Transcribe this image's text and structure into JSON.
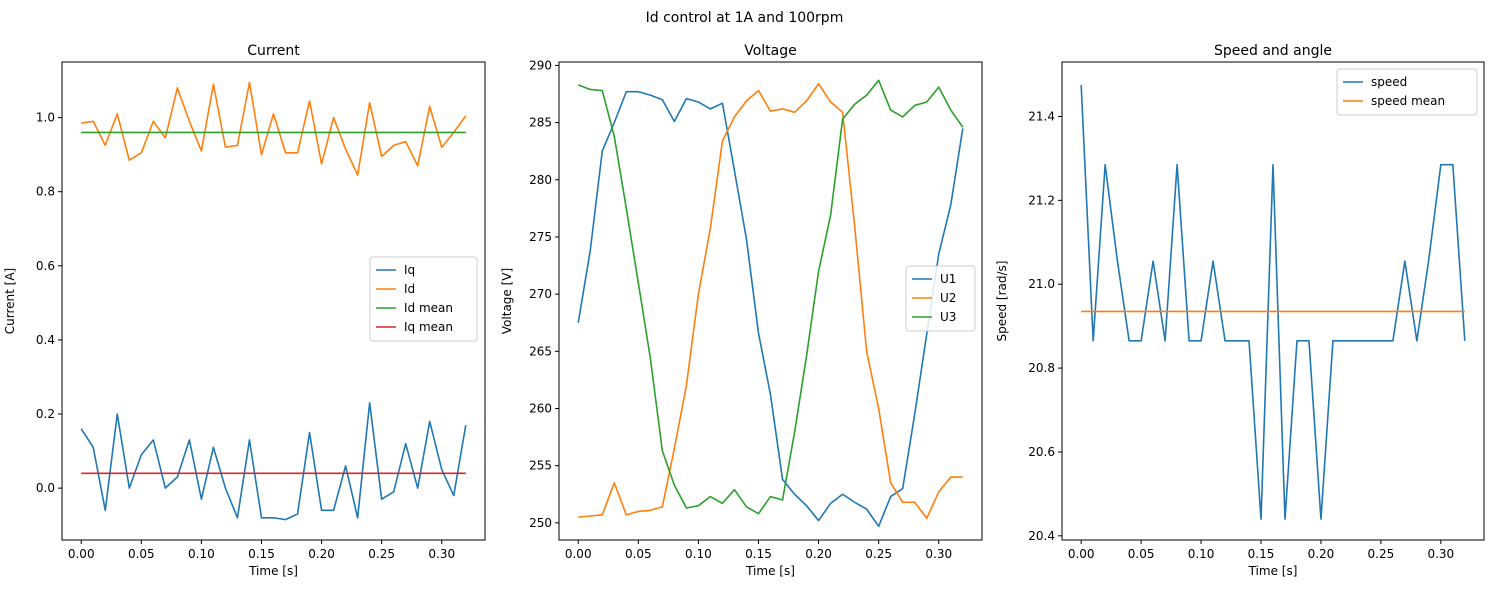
{
  "figure": {
    "title": "Id control at 1A and 100rpm"
  },
  "chart_data": [
    {
      "type": "line",
      "title": "Current",
      "xlabel": "Time [s]",
      "ylabel": "Current [A]",
      "xlim": [
        -0.016,
        0.336
      ],
      "ylim": [
        -0.14,
        1.15
      ],
      "xticks": [
        0.0,
        0.05,
        0.1,
        0.15,
        0.2,
        0.25,
        0.3
      ],
      "xtick_labels": [
        "0.00",
        "0.05",
        "0.10",
        "0.15",
        "0.20",
        "0.25",
        "0.30"
      ],
      "yticks": [
        0.0,
        0.2,
        0.4,
        0.6,
        0.8,
        1.0
      ],
      "ytick_labels": [
        "0.0",
        "0.2",
        "0.4",
        "0.6",
        "0.8",
        "1.0"
      ],
      "grid": false,
      "legend_position": "center-right",
      "x": [
        0.0,
        0.01,
        0.02,
        0.03,
        0.04,
        0.05,
        0.06,
        0.07,
        0.08,
        0.09,
        0.1,
        0.11,
        0.12,
        0.13,
        0.14,
        0.15,
        0.16,
        0.17,
        0.18,
        0.19,
        0.2,
        0.21,
        0.22,
        0.23,
        0.24,
        0.25,
        0.26,
        0.27,
        0.28,
        0.29,
        0.3,
        0.31,
        0.32
      ],
      "series": [
        {
          "name": "Iq",
          "color": "#1f77b4",
          "values": [
            0.16,
            0.11,
            -0.06,
            0.2,
            0.0,
            0.09,
            0.13,
            0.0,
            0.03,
            0.13,
            -0.03,
            0.11,
            0.0,
            -0.08,
            0.13,
            -0.08,
            -0.08,
            -0.085,
            -0.07,
            0.15,
            -0.06,
            -0.06,
            0.06,
            -0.08,
            0.23,
            -0.03,
            -0.01,
            0.12,
            0.0,
            0.18,
            0.05,
            -0.02,
            0.17
          ]
        },
        {
          "name": "Id",
          "color": "#ff7f0e",
          "values": [
            0.985,
            0.99,
            0.925,
            1.01,
            0.885,
            0.905,
            0.99,
            0.945,
            1.08,
            0.99,
            0.91,
            1.09,
            0.92,
            0.925,
            1.095,
            0.9,
            1.01,
            0.905,
            0.905,
            1.045,
            0.875,
            1.0,
            0.915,
            0.845,
            1.04,
            0.895,
            0.925,
            0.935,
            0.87,
            1.03,
            0.92,
            0.96,
            1.005
          ]
        },
        {
          "name": "Id mean",
          "color": "#2ca02c",
          "values": [
            0.96,
            0.96,
            0.96,
            0.96,
            0.96,
            0.96,
            0.96,
            0.96,
            0.96,
            0.96,
            0.96,
            0.96,
            0.96,
            0.96,
            0.96,
            0.96,
            0.96,
            0.96,
            0.96,
            0.96,
            0.96,
            0.96,
            0.96,
            0.96,
            0.96,
            0.96,
            0.96,
            0.96,
            0.96,
            0.96,
            0.96,
            0.96,
            0.96
          ]
        },
        {
          "name": "Iq mean",
          "color": "#d62728",
          "values": [
            0.04,
            0.04,
            0.04,
            0.04,
            0.04,
            0.04,
            0.04,
            0.04,
            0.04,
            0.04,
            0.04,
            0.04,
            0.04,
            0.04,
            0.04,
            0.04,
            0.04,
            0.04,
            0.04,
            0.04,
            0.04,
            0.04,
            0.04,
            0.04,
            0.04,
            0.04,
            0.04,
            0.04,
            0.04,
            0.04,
            0.04,
            0.04,
            0.04
          ]
        }
      ]
    },
    {
      "type": "line",
      "title": "Voltage",
      "xlabel": "Time [s]",
      "ylabel": "Voltage [V]",
      "xlim": [
        -0.016,
        0.336
      ],
      "ylim": [
        248.5,
        290.3
      ],
      "xticks": [
        0.0,
        0.05,
        0.1,
        0.15,
        0.2,
        0.25,
        0.3
      ],
      "xtick_labels": [
        "0.00",
        "0.05",
        "0.10",
        "0.15",
        "0.20",
        "0.25",
        "0.30"
      ],
      "yticks": [
        250,
        255,
        260,
        265,
        270,
        275,
        280,
        285,
        290
      ],
      "ytick_labels": [
        "250",
        "255",
        "260",
        "265",
        "270",
        "275",
        "280",
        "285",
        "290"
      ],
      "grid": false,
      "legend_position": "center-right",
      "x": [
        0.0,
        0.01,
        0.02,
        0.03,
        0.04,
        0.05,
        0.06,
        0.07,
        0.08,
        0.09,
        0.1,
        0.11,
        0.12,
        0.13,
        0.14,
        0.15,
        0.16,
        0.17,
        0.18,
        0.19,
        0.2,
        0.21,
        0.22,
        0.23,
        0.24,
        0.25,
        0.26,
        0.27,
        0.28,
        0.29,
        0.3,
        0.31,
        0.32
      ],
      "series": [
        {
          "name": "U1",
          "color": "#1f77b4",
          "values": [
            267.5,
            273.8,
            282.5,
            285.0,
            287.7,
            287.7,
            287.4,
            287.0,
            285.1,
            287.1,
            286.8,
            286.2,
            286.7,
            280.8,
            274.8,
            266.6,
            261.2,
            253.8,
            252.5,
            251.5,
            250.2,
            251.7,
            252.5,
            251.8,
            251.2,
            249.7,
            252.3,
            253.0,
            259.5,
            266.5,
            273.5,
            277.8,
            284.5
          ]
        },
        {
          "name": "U2",
          "color": "#ff7f0e",
          "values": [
            250.5,
            250.6,
            250.7,
            253.5,
            250.7,
            251.0,
            251.1,
            251.4,
            256.5,
            262.0,
            270.0,
            275.8,
            283.4,
            285.5,
            286.9,
            287.8,
            286.0,
            286.2,
            285.9,
            286.9,
            288.4,
            286.8,
            285.9,
            276.0,
            265.0,
            260.0,
            253.5,
            251.8,
            251.8,
            250.4,
            252.7,
            254.0,
            254.0
          ]
        },
        {
          "name": "U3",
          "color": "#2ca02c",
          "values": [
            288.3,
            287.9,
            287.8,
            283.8,
            277.5,
            271.0,
            264.4,
            256.3,
            253.3,
            251.3,
            251.5,
            252.3,
            251.7,
            252.9,
            251.4,
            250.8,
            252.3,
            252.0,
            257.9,
            264.6,
            272.0,
            276.9,
            285.3,
            286.6,
            287.4,
            288.7,
            286.1,
            285.5,
            286.5,
            286.8,
            288.1,
            286.1,
            284.6
          ]
        }
      ]
    },
    {
      "type": "line",
      "title": "Speed and angle",
      "xlabel": "Time [s]",
      "ylabel": "Speed [rad/s]",
      "xlim": [
        -0.016,
        0.336
      ],
      "ylim": [
        20.39,
        21.53
      ],
      "xticks": [
        0.0,
        0.05,
        0.1,
        0.15,
        0.2,
        0.25,
        0.3
      ],
      "xtick_labels": [
        "0.00",
        "0.05",
        "0.10",
        "0.15",
        "0.20",
        "0.25",
        "0.30"
      ],
      "yticks": [
        20.4,
        20.6,
        20.8,
        21.0,
        21.2,
        21.4
      ],
      "ytick_labels": [
        "20.4",
        "20.6",
        "20.8",
        "21.0",
        "21.2",
        "21.4"
      ],
      "grid": false,
      "legend_position": "top-right",
      "x": [
        0.0,
        0.01,
        0.02,
        0.03,
        0.04,
        0.05,
        0.06,
        0.07,
        0.08,
        0.09,
        0.1,
        0.11,
        0.12,
        0.13,
        0.14,
        0.15,
        0.16,
        0.17,
        0.18,
        0.19,
        0.2,
        0.21,
        0.22,
        0.23,
        0.24,
        0.25,
        0.26,
        0.27,
        0.28,
        0.29,
        0.3,
        0.31,
        0.32
      ],
      "series": [
        {
          "name": "speed",
          "color": "#1f77b4",
          "values": [
            21.475,
            20.865,
            21.285,
            21.06,
            20.865,
            20.865,
            21.055,
            20.865,
            21.285,
            20.865,
            20.865,
            21.055,
            20.865,
            20.865,
            20.865,
            20.44,
            21.285,
            20.44,
            20.865,
            20.865,
            20.44,
            20.865,
            20.865,
            20.865,
            20.865,
            20.865,
            20.865,
            21.055,
            20.865,
            21.06,
            21.285,
            21.285,
            20.865
          ]
        },
        {
          "name": "speed mean",
          "color": "#ff7f0e",
          "values": [
            20.935,
            20.935,
            20.935,
            20.935,
            20.935,
            20.935,
            20.935,
            20.935,
            20.935,
            20.935,
            20.935,
            20.935,
            20.935,
            20.935,
            20.935,
            20.935,
            20.935,
            20.935,
            20.935,
            20.935,
            20.935,
            20.935,
            20.935,
            20.935,
            20.935,
            20.935,
            20.935,
            20.935,
            20.935,
            20.935,
            20.935,
            20.935,
            20.935
          ]
        }
      ]
    }
  ]
}
